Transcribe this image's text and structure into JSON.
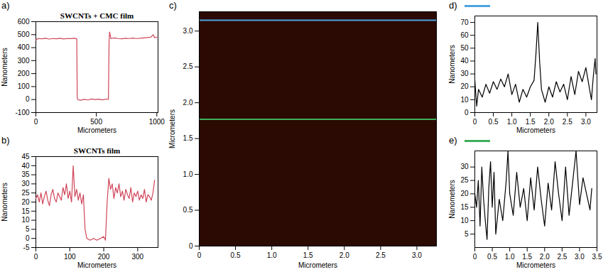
{
  "chart_data": [
    {
      "type": "line",
      "panel": "a)",
      "title": "SWCNTs + CMC film",
      "color": "#d0455a",
      "xlabel": "Micrometers",
      "ylabel": "Nanometers",
      "xlim": [
        0,
        1010
      ],
      "xticks": [
        0,
        500,
        1000
      ],
      "ylim": [
        -100,
        600
      ],
      "yticks": [
        -100,
        0,
        100,
        200,
        300,
        400,
        500,
        600
      ],
      "x": [
        0,
        20,
        50,
        80,
        110,
        140,
        170,
        200,
        230,
        260,
        290,
        320,
        338,
        342,
        345,
        370,
        400,
        430,
        460,
        490,
        520,
        550,
        580,
        600,
        605,
        610,
        620,
        650,
        680,
        710,
        740,
        770,
        800,
        830,
        860,
        890,
        920,
        950,
        970,
        980,
        1000
      ],
      "values": [
        460,
        470,
        468,
        472,
        466,
        470,
        468,
        472,
        467,
        470,
        469,
        472,
        468,
        20,
        0,
        -5,
        2,
        -3,
        5,
        0,
        3,
        -2,
        4,
        2,
        450,
        520,
        470,
        475,
        470,
        468,
        472,
        470,
        474,
        470,
        472,
        475,
        478,
        480,
        500,
        478,
        480
      ]
    },
    {
      "type": "line",
      "panel": "b)",
      "title": "SWCNTs film",
      "color": "#d0455a",
      "xlabel": "Micrometers",
      "ylabel": "Nanometers",
      "xlim": [
        0,
        360
      ],
      "xticks": [
        0,
        100,
        200,
        300
      ],
      "ylim": [
        -5,
        45
      ],
      "yticks": [
        -5,
        0,
        5,
        10,
        15,
        20,
        25,
        30,
        35,
        40,
        45
      ],
      "x": [
        0,
        5,
        10,
        15,
        20,
        25,
        30,
        35,
        40,
        45,
        50,
        55,
        60,
        65,
        70,
        75,
        80,
        85,
        90,
        95,
        100,
        105,
        110,
        115,
        120,
        125,
        130,
        135,
        140,
        145,
        150,
        160,
        170,
        180,
        190,
        200,
        205,
        210,
        215,
        220,
        225,
        230,
        235,
        240,
        245,
        250,
        255,
        260,
        265,
        270,
        275,
        280,
        285,
        290,
        295,
        300,
        305,
        310,
        315,
        320,
        325,
        330,
        335,
        340,
        345,
        350
      ],
      "values": [
        22,
        24,
        20,
        25,
        19,
        23,
        26,
        21,
        18,
        24,
        27,
        22,
        20,
        25,
        23,
        21,
        28,
        24,
        30,
        22,
        26,
        20,
        40,
        23,
        27,
        21,
        25,
        19,
        24,
        5,
        0,
        -1,
        0,
        -1,
        0,
        1,
        -1,
        20,
        33,
        27,
        30,
        22,
        28,
        25,
        30,
        23,
        26,
        21,
        27,
        24,
        22,
        28,
        20,
        25,
        23,
        26,
        21,
        24,
        22,
        27,
        20,
        24,
        23,
        21,
        25,
        32
      ]
    },
    {
      "type": "image",
      "panel": "c)",
      "color": "#2a0a02",
      "xlabel": "Micrometers",
      "ylabel": "Micrometers",
      "xlim": [
        0,
        3.27
      ],
      "xticks": [
        0,
        0.5,
        {
          "value": 1,
          "label": "1.0"
        },
        1.5,
        {
          "value": 2,
          "label": "2.0"
        },
        2.5,
        {
          "value": 3,
          "label": "3.0"
        }
      ],
      "ylim": [
        0,
        3.27
      ],
      "yticks": [
        0,
        0.5,
        {
          "value": 1,
          "label": "1.0"
        },
        1.5,
        {
          "value": 2,
          "label": "2.0"
        },
        2.5,
        {
          "value": 3,
          "label": "3.0"
        }
      ],
      "lines": [
        {
          "y": 3.15,
          "color": "#4da3e0"
        },
        {
          "y": 1.77,
          "color": "#3fae5a"
        }
      ]
    },
    {
      "type": "line",
      "panel": "d)",
      "color": "#000000",
      "key_color": "#4da3e0",
      "xlabel": "Micrometers",
      "ylabel": "Nanometers",
      "xlim": [
        0,
        3.3
      ],
      "xticks": [
        0,
        0.5,
        {
          "value": 1,
          "label": "1.0"
        },
        1.5,
        {
          "value": 2,
          "label": "2.0"
        },
        2.5,
        {
          "value": 3,
          "label": "3.0"
        }
      ],
      "ylim": [
        0,
        75
      ],
      "yticks": [
        0,
        10,
        20,
        30,
        40,
        50,
        60,
        70
      ],
      "x": [
        0,
        0.05,
        0.1,
        0.2,
        0.3,
        0.4,
        0.5,
        0.6,
        0.7,
        0.8,
        0.9,
        1.0,
        1.1,
        1.2,
        1.3,
        1.4,
        1.5,
        1.6,
        1.65,
        1.7,
        1.75,
        1.8,
        1.9,
        2.0,
        2.1,
        2.2,
        2.3,
        2.4,
        2.5,
        2.6,
        2.7,
        2.8,
        2.9,
        3.0,
        3.1,
        3.15,
        3.2,
        3.25,
        3.27
      ],
      "values": [
        25,
        5,
        18,
        12,
        22,
        15,
        24,
        18,
        26,
        20,
        30,
        14,
        22,
        8,
        18,
        12,
        20,
        25,
        45,
        70,
        40,
        18,
        8,
        20,
        12,
        24,
        16,
        22,
        10,
        28,
        14,
        32,
        24,
        35,
        18,
        10,
        28,
        42,
        30
      ]
    },
    {
      "type": "line",
      "panel": "e)",
      "color": "#000000",
      "key_color": "#3fae5a",
      "xlabel": "Micrometers",
      "ylabel": "Nanometers",
      "xlim": [
        0,
        3.5
      ],
      "xticks": [
        0,
        0.5,
        {
          "value": 1,
          "label": "1.0"
        },
        1.5,
        {
          "value": 2,
          "label": "2.0"
        },
        2.5,
        {
          "value": 3,
          "label": "3.0"
        },
        3.5
      ],
      "ylim": [
        0,
        36
      ],
      "yticks": [
        5,
        10,
        15,
        20,
        25,
        30
      ],
      "x": [
        0,
        0.05,
        0.1,
        0.15,
        0.2,
        0.25,
        0.3,
        0.35,
        0.4,
        0.45,
        0.5,
        0.55,
        0.6,
        0.7,
        0.8,
        0.9,
        0.95,
        1.0,
        1.1,
        1.2,
        1.3,
        1.4,
        1.5,
        1.6,
        1.7,
        1.8,
        1.9,
        2.0,
        2.1,
        2.2,
        2.3,
        2.4,
        2.5,
        2.6,
        2.7,
        2.8,
        2.9,
        3.0,
        3.1,
        3.2,
        3.3,
        3.35
      ],
      "values": [
        20,
        15,
        25,
        8,
        30,
        18,
        10,
        3,
        22,
        32,
        15,
        28,
        5,
        18,
        10,
        25,
        36,
        20,
        12,
        28,
        15,
        22,
        10,
        26,
        14,
        30,
        18,
        8,
        24,
        14,
        32,
        20,
        10,
        30,
        12,
        24,
        36,
        16,
        26,
        20,
        14,
        22
      ]
    }
  ]
}
